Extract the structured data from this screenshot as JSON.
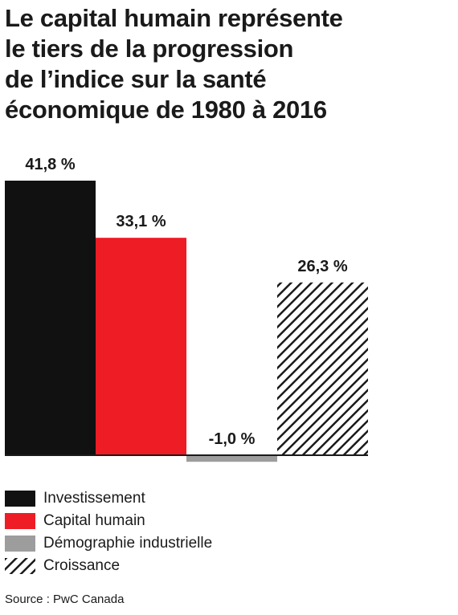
{
  "title_lines": [
    "Le capital humain représente",
    "le tiers de la progression",
    "de l’indice sur la santé",
    "économique de 1980 à 2016"
  ],
  "chart_data": {
    "type": "bar",
    "title": "Le capital humain représente le tiers de la progression de l’indice sur la santé économique de 1980 à 2016",
    "categories": [
      "Investissement",
      "Capital humain",
      "Démographie industrielle",
      "Croissance"
    ],
    "values": [
      41.8,
      33.1,
      -1.0,
      26.3
    ],
    "value_labels": [
      "41,8 %",
      "33,1 %",
      "-1,0 %",
      "26,3 %"
    ],
    "colors": [
      "#111111",
      "#ee1c25",
      "#9d9d9d",
      "hatch"
    ],
    "ylim": [
      -1.5,
      45
    ],
    "grid": false,
    "legend_position": "bottom-left",
    "xlabel": "",
    "ylabel": ""
  },
  "legend": [
    {
      "label": "Investissement",
      "color": "#111111",
      "pattern": "solid"
    },
    {
      "label": "Capital humain",
      "color": "#ee1c25",
      "pattern": "solid"
    },
    {
      "label": "Démographie industrielle",
      "color": "#9d9d9d",
      "pattern": "solid"
    },
    {
      "label": "Croissance",
      "color": "#1a1a1a",
      "pattern": "hatch"
    }
  ],
  "source": "Source : PwC Canada"
}
